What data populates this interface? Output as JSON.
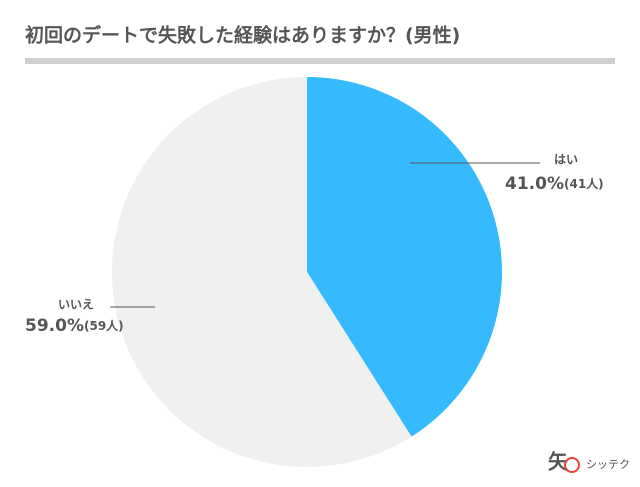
{
  "chart_data": {
    "type": "pie",
    "title": "初回のデートで失敗した経験はありますか？(男性)",
    "categories": [
      "はい",
      "いいえ"
    ],
    "values": [
      41.0,
      59.0
    ],
    "value_labels": [
      "41.0%",
      "59.0%"
    ],
    "count_labels": [
      "(41人)",
      "(59人)"
    ],
    "colors": [
      "#35b9ff",
      "#f0f0f0"
    ]
  },
  "logo": {
    "mark": "矢",
    "name": "シッテク"
  }
}
